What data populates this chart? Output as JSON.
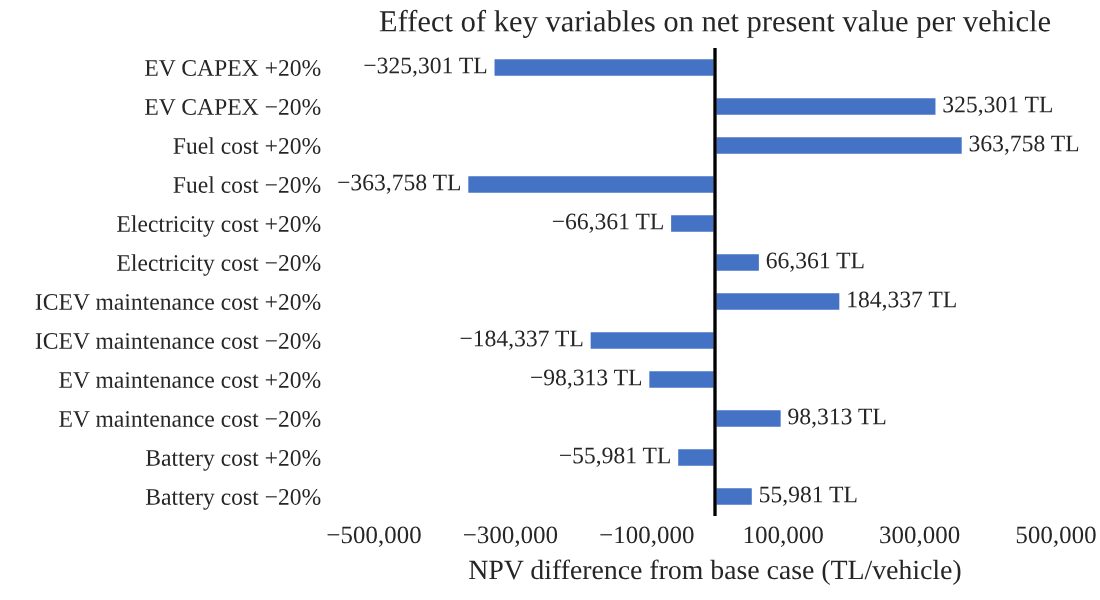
{
  "chart_data": {
    "type": "bar",
    "orientation": "horizontal",
    "title": "Effect of key variables on net present value per vehicle",
    "xlabel": "NPV difference from base case (TL/vehicle)",
    "categories": [
      "EV CAPEX +20%",
      "EV CAPEX −20%",
      "Fuel cost +20%",
      "Fuel cost −20%",
      "Electricity cost +20%",
      "Electricity cost −20%",
      "ICEV maintenance cost +20%",
      "ICEV maintenance cost −20%",
      "EV maintenance cost +20%",
      "EV maintenance cost −20%",
      "Battery cost +20%",
      "Battery cost −20%"
    ],
    "values": [
      -325301,
      325301,
      363758,
      -363758,
      -66361,
      66361,
      184337,
      -184337,
      -98313,
      98313,
      -55981,
      55981
    ],
    "value_labels": [
      "−325,301 TL",
      "325,301 TL",
      "363,758 TL",
      "−363,758 TL",
      "−66,361 TL",
      "66,361 TL",
      "184,337 TL",
      "−184,337 TL",
      "−98,313 TL",
      "98,313 TL",
      "−55,981 TL",
      "55,981 TL"
    ],
    "color": "#4472c4",
    "xlim": [
      -500000,
      500000
    ],
    "xticks": [
      {
        "value": -500000,
        "label": "−500,000"
      },
      {
        "value": -300000,
        "label": "−300,000"
      },
      {
        "value": -100000,
        "label": "−100,000"
      },
      {
        "value": 100000,
        "label": "100,000"
      },
      {
        "value": 300000,
        "label": "300,000"
      },
      {
        "value": 500000,
        "label": "500,000"
      }
    ],
    "grid": false,
    "legend": false
  }
}
